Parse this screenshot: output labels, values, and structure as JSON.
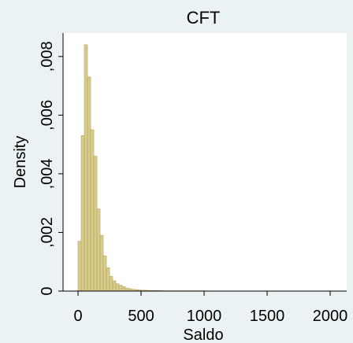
{
  "chart_data": {
    "type": "histogram",
    "title": "CFT",
    "x_label": "Saldo",
    "y_label": "Density",
    "bins": [
      0,
      25,
      50,
      75,
      100,
      125,
      150,
      175,
      200,
      225,
      250,
      275,
      300,
      325,
      350,
      375,
      400,
      425,
      450,
      475,
      500,
      525,
      550,
      575,
      600,
      625,
      650,
      675,
      700,
      725,
      750,
      775,
      800,
      825,
      850,
      875,
      900,
      925,
      950,
      975,
      1000
    ],
    "values": [
      0.0017,
      0.0053,
      0.0084,
      0.0073,
      0.0055,
      0.0046,
      0.0028,
      0.0019,
      0.0012,
      0.0008,
      0.0005,
      0.00035,
      0.00025,
      0.0002,
      0.00015,
      0.0001,
      8e-05,
      6e-05,
      5e-05,
      4e-05,
      3e-05,
      3e-05,
      2e-05,
      2e-05,
      2e-05,
      2e-05,
      1e-05,
      1e-05,
      1e-05,
      1e-05,
      1e-05,
      1e-05,
      1e-05,
      1e-05,
      1e-05,
      1e-05,
      1e-05,
      1e-05,
      1e-05,
      1e-05
    ],
    "color": "#d8cc8c",
    "edge_color": "#b4a45c",
    "xlim": [
      -119,
      2131
    ],
    "xticks": [
      0,
      500,
      1000,
      1500,
      2000
    ],
    "ylim": [
      0,
      0.0088
    ],
    "yticks": [
      0,
      {
        "value": 0.002,
        "label": ",002"
      },
      {
        "value": 0.004,
        "label": ",004"
      },
      {
        "value": 0.006,
        "label": ",006"
      },
      {
        "value": 0.008,
        "label": ",008"
      }
    ],
    "grid": false
  }
}
